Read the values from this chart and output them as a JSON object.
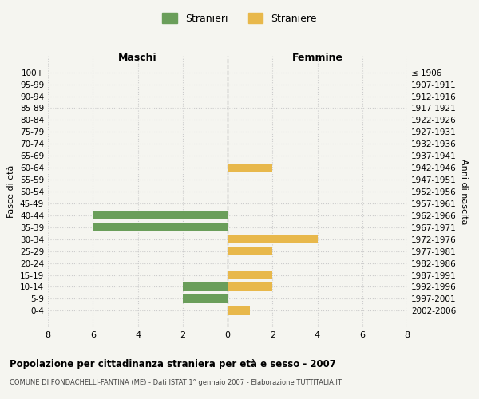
{
  "age_groups": [
    "100+",
    "95-99",
    "90-94",
    "85-89",
    "80-84",
    "75-79",
    "70-74",
    "65-69",
    "60-64",
    "55-59",
    "50-54",
    "45-49",
    "40-44",
    "35-39",
    "30-34",
    "25-29",
    "20-24",
    "15-19",
    "10-14",
    "5-9",
    "0-4"
  ],
  "birth_years": [
    "≤ 1906",
    "1907-1911",
    "1912-1916",
    "1917-1921",
    "1922-1926",
    "1927-1931",
    "1932-1936",
    "1937-1941",
    "1942-1946",
    "1947-1951",
    "1952-1956",
    "1957-1961",
    "1962-1966",
    "1967-1971",
    "1972-1976",
    "1977-1981",
    "1982-1986",
    "1987-1991",
    "1992-1996",
    "1997-2001",
    "2002-2006"
  ],
  "maschi_stranieri": [
    0,
    0,
    0,
    0,
    0,
    0,
    0,
    0,
    0,
    0,
    0,
    0,
    6,
    6,
    0,
    0,
    0,
    0,
    2,
    2,
    0
  ],
  "femmine_straniere": [
    0,
    0,
    0,
    0,
    0,
    0,
    0,
    0,
    2,
    0,
    0,
    0,
    0,
    0,
    4,
    2,
    0,
    2,
    2,
    0,
    1
  ],
  "color_maschi": "#6a9e5a",
  "color_femmine": "#e8b84b",
  "title_main": "Popolazione per cittadinanza straniera per età e sesso - 2007",
  "title_sub": "COMUNE DI FONDACHELLI-FANTINA (ME) - Dati ISTAT 1° gennaio 2007 - Elaborazione TUTTITALIA.IT",
  "xlabel_left": "Maschi",
  "xlabel_right": "Femmine",
  "ylabel_left": "Fasce di età",
  "ylabel_right": "Anni di nascita",
  "xlim": 8,
  "legend_stranieri": "Stranieri",
  "legend_straniere": "Straniere",
  "background_color": "#f5f5f0",
  "grid_color": "#cccccc"
}
